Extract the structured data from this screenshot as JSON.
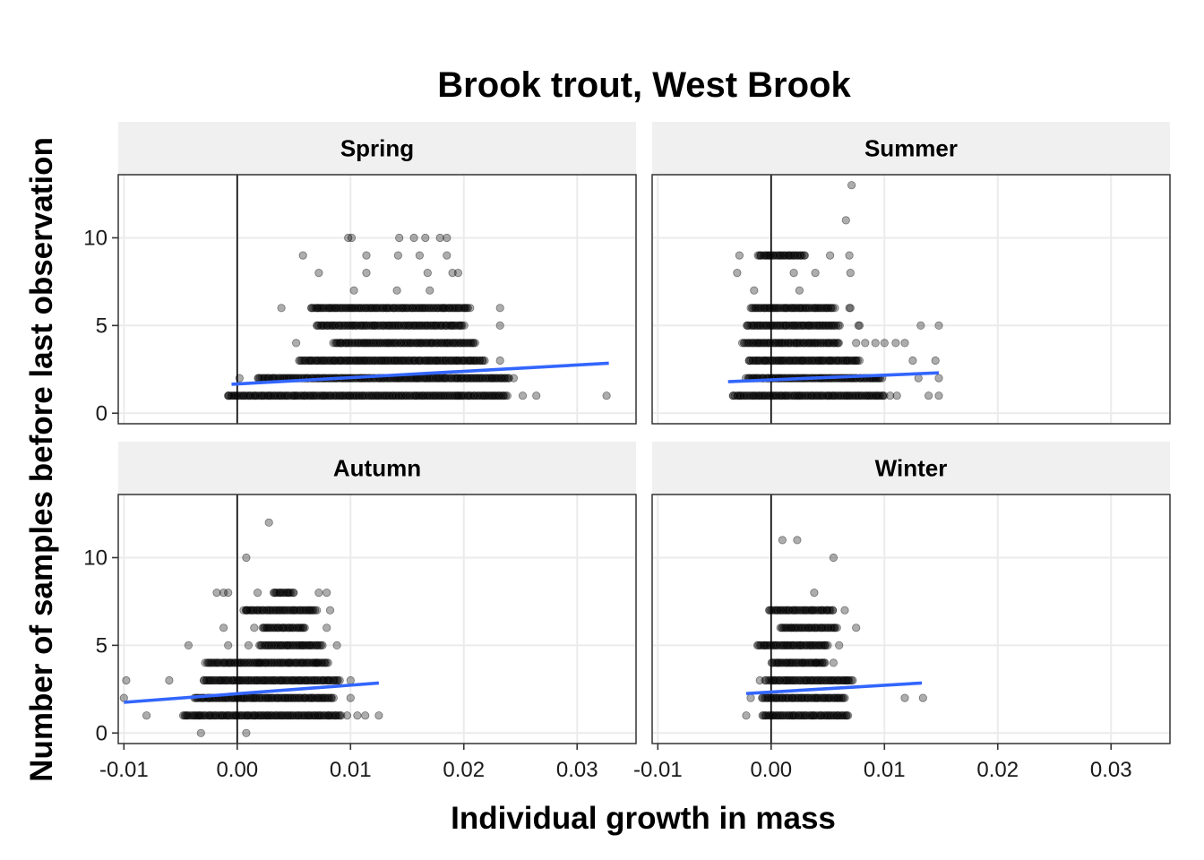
{
  "chart_data": {
    "type": "scatter",
    "title": "Brook trout, West Brook",
    "xlabel": "Individual growth in mass",
    "ylabel": "Number of samples before last observation",
    "xlim": [
      -0.0105,
      0.0352
    ],
    "ylim": [
      -0.6,
      13.6
    ],
    "x_ticks": [
      -0.01,
      0.0,
      0.01,
      0.02,
      0.03
    ],
    "x_tick_labels": [
      "-0.01",
      "0.00",
      "0.01",
      "0.02",
      "0.03"
    ],
    "y_ticks": [
      0,
      5,
      10
    ],
    "y_tick_labels": [
      "0",
      "5",
      "10"
    ],
    "grid": true,
    "vline_x": 0,
    "point_color": "#000000",
    "point_alpha": 0.32,
    "trend_color": "#3366ff",
    "strip_color": "#f0f0f0",
    "panels": [
      {
        "name": "Spring",
        "trend": [
          [
            -0.0005,
            1.65
          ],
          [
            0.0328,
            2.85
          ]
        ],
        "rows": [
          {
            "y": 1,
            "from": -0.0008,
            "to": 0.0238
          },
          {
            "y": 2,
            "from": 0.0018,
            "to": 0.024
          },
          {
            "y": 3,
            "from": 0.0055,
            "to": 0.0218
          },
          {
            "y": 4,
            "from": 0.0085,
            "to": 0.021
          },
          {
            "y": 5,
            "from": 0.007,
            "to": 0.02
          },
          {
            "y": 6,
            "from": 0.0065,
            "to": 0.0205
          }
        ],
        "points": [
          [
            -0.0008,
            1
          ],
          [
            0.0326,
            1
          ],
          [
            0.0264,
            1
          ],
          [
            0.0252,
            1
          ],
          [
            0.0244,
            2
          ],
          [
            0.0002,
            2
          ],
          [
            0.0232,
            3
          ],
          [
            0.0232,
            5
          ],
          [
            0.0232,
            6
          ],
          [
            0.0052,
            4
          ],
          [
            0.0039,
            6
          ],
          [
            0.0103,
            7
          ],
          [
            0.0141,
            7
          ],
          [
            0.017,
            7
          ],
          [
            0.0168,
            8
          ],
          [
            0.019,
            8
          ],
          [
            0.0072,
            8
          ],
          [
            0.0114,
            8
          ],
          [
            0.0195,
            8
          ],
          [
            0.0058,
            9
          ],
          [
            0.0114,
            9
          ],
          [
            0.0142,
            9
          ],
          [
            0.0161,
            9
          ],
          [
            0.0185,
            9
          ],
          [
            0.0098,
            10
          ],
          [
            0.0101,
            10
          ],
          [
            0.0143,
            10
          ],
          [
            0.0156,
            10
          ],
          [
            0.0166,
            10
          ],
          [
            0.0179,
            10
          ],
          [
            0.0185,
            10
          ]
        ]
      },
      {
        "name": "Summer",
        "trend": [
          [
            -0.0038,
            1.8
          ],
          [
            0.0148,
            2.3
          ]
        ],
        "rows": [
          {
            "y": 1,
            "from": -0.0034,
            "to": 0.01
          },
          {
            "y": 2,
            "from": -0.0022,
            "to": 0.0098
          },
          {
            "y": 3,
            "from": -0.002,
            "to": 0.0078
          },
          {
            "y": 4,
            "from": -0.0025,
            "to": 0.006
          },
          {
            "y": 5,
            "from": -0.0022,
            "to": 0.006
          },
          {
            "y": 6,
            "from": -0.0018,
            "to": 0.0056
          },
          {
            "y": 9,
            "from": -0.0012,
            "to": 0.003
          }
        ],
        "points": [
          [
            0.0105,
            1
          ],
          [
            0.0111,
            1
          ],
          [
            0.0139,
            1
          ],
          [
            0.0148,
            1
          ],
          [
            0.0148,
            2
          ],
          [
            0.013,
            2
          ],
          [
            0.0125,
            3
          ],
          [
            0.0145,
            3
          ],
          [
            0.0092,
            4
          ],
          [
            0.01,
            4
          ],
          [
            0.011,
            4
          ],
          [
            0.0118,
            4
          ],
          [
            0.0075,
            4
          ],
          [
            0.0083,
            4
          ],
          [
            0.0077,
            5
          ],
          [
            0.0078,
            5
          ],
          [
            0.0132,
            5
          ],
          [
            0.0148,
            5
          ],
          [
            0.0069,
            6
          ],
          [
            0.007,
            6
          ],
          [
            -0.0015,
            7
          ],
          [
            0.0025,
            7
          ],
          [
            -0.003,
            8
          ],
          [
            0.002,
            8
          ],
          [
            0.0039,
            8
          ],
          [
            0.007,
            8
          ],
          [
            -0.0028,
            9
          ],
          [
            0.0052,
            9
          ],
          [
            0.0069,
            9
          ],
          [
            0.0066,
            11
          ],
          [
            0.0071,
            13
          ]
        ]
      },
      {
        "name": "Autumn",
        "trend": [
          [
            -0.01,
            1.75
          ],
          [
            0.0125,
            2.85
          ]
        ],
        "rows": [
          {
            "y": 1,
            "from": -0.0048,
            "to": 0.0092
          },
          {
            "y": 2,
            "from": -0.0038,
            "to": 0.0085
          },
          {
            "y": 3,
            "from": -0.003,
            "to": 0.009
          },
          {
            "y": 4,
            "from": -0.0028,
            "to": 0.008
          },
          {
            "y": 5,
            "from": 0.002,
            "to": 0.0075
          },
          {
            "y": 6,
            "from": 0.0022,
            "to": 0.006
          },
          {
            "y": 7,
            "from": 0.0006,
            "to": 0.007
          },
          {
            "y": 8,
            "from": 0.0032,
            "to": 0.005
          }
        ],
        "points": [
          [
            -0.01,
            2
          ],
          [
            -0.0098,
            3
          ],
          [
            -0.008,
            1
          ],
          [
            -0.006,
            3
          ],
          [
            -0.0043,
            5
          ],
          [
            -0.0008,
            5
          ],
          [
            0.001,
            5
          ],
          [
            -0.0032,
            0
          ],
          [
            0.0008,
            0
          ],
          [
            0.0097,
            1
          ],
          [
            0.0106,
            1
          ],
          [
            0.0113,
            1
          ],
          [
            0.0125,
            1
          ],
          [
            0.01,
            2
          ],
          [
            0.01,
            3
          ],
          [
            0.0088,
            5
          ],
          [
            0.0079,
            6
          ],
          [
            0.0082,
            7
          ],
          [
            0.0079,
            8
          ],
          [
            0.0072,
            8
          ],
          [
            -0.0012,
            6
          ],
          [
            0.0015,
            6
          ],
          [
            -0.0018,
            8
          ],
          [
            -0.0012,
            8
          ],
          [
            -0.0008,
            8
          ],
          [
            0.0018,
            8
          ],
          [
            0.0008,
            7
          ],
          [
            0.007,
            4
          ],
          [
            0.002,
            4
          ],
          [
            0.0008,
            10
          ],
          [
            0.0028,
            12
          ]
        ]
      },
      {
        "name": "Winter",
        "trend": [
          [
            -0.0022,
            2.25
          ],
          [
            0.0133,
            2.85
          ]
        ],
        "rows": [
          {
            "y": 1,
            "from": -0.0008,
            "to": 0.0068
          },
          {
            "y": 2,
            "from": -0.0008,
            "to": 0.0065
          },
          {
            "y": 3,
            "from": -0.0005,
            "to": 0.007
          },
          {
            "y": 4,
            "from": 0.0,
            "to": 0.0048
          },
          {
            "y": 5,
            "from": -0.0012,
            "to": 0.005
          },
          {
            "y": 6,
            "from": 0.0008,
            "to": 0.0058
          },
          {
            "y": 7,
            "from": -0.0002,
            "to": 0.0055
          }
        ],
        "points": [
          [
            -0.0022,
            1
          ],
          [
            -0.0018,
            2
          ],
          [
            0.0118,
            2
          ],
          [
            0.0134,
            2
          ],
          [
            0.0072,
            3
          ],
          [
            0.0075,
            6
          ],
          [
            0.0065,
            7
          ],
          [
            0.0038,
            8
          ],
          [
            0.0055,
            10
          ],
          [
            0.001,
            11
          ],
          [
            0.0023,
            11
          ],
          [
            -0.001,
            3
          ],
          [
            0.006,
            5
          ],
          [
            0.004,
            4
          ],
          [
            0.0055,
            4
          ],
          [
            0.0065,
            3
          ]
        ]
      }
    ]
  }
}
